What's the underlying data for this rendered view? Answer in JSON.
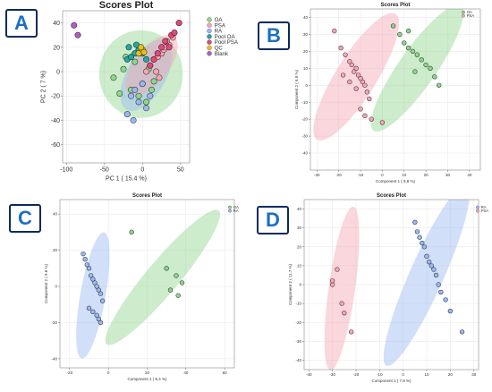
{
  "panels": {
    "A": {
      "label": "A"
    },
    "B": {
      "label": "B"
    },
    "C": {
      "label": "C"
    },
    "D": {
      "label": "D"
    }
  },
  "colors": {
    "OA": "#8fd48f",
    "PSA": "#f4a6b4",
    "RA": "#9bb8f0",
    "Pool OA": "#2aa6a0",
    "Pool PSA": "#e04a7a",
    "QC": "#e8c21a",
    "Blank": "#b060c0"
  },
  "chart_data": [
    {
      "id": "A",
      "type": "scatter",
      "title": "Scores Plot",
      "xlabel": "PC 1 ( 15.4 %)",
      "ylabel": "PC 2 ( 7 %)",
      "xlim": [
        -105,
        62
      ],
      "ylim": [
        -75,
        50
      ],
      "xticks": [
        -100,
        -50,
        0,
        50
      ],
      "yticks": [
        40,
        20,
        0,
        -20,
        -40,
        -60
      ],
      "legend": [
        "OA",
        "PSA",
        "RA",
        "Pool OA",
        "Pool PSA",
        "QC",
        "Blank"
      ],
      "legend_position": "right",
      "ellipses": [
        {
          "group": "OA",
          "cx": -2,
          "cy": -2,
          "rx": 55,
          "ry": 36,
          "angle": 0
        },
        {
          "group": "RA",
          "cx": 5,
          "cy": -3,
          "rx": 52,
          "ry": 16,
          "angle": 60
        },
        {
          "group": "PSA",
          "cx": 12,
          "cy": 5,
          "rx": 48,
          "ry": 14,
          "angle": 52
        }
      ],
      "series": [
        {
          "name": "OA",
          "x": [
            -38,
            -22,
            -15,
            -10,
            -5,
            0,
            5,
            8,
            12,
            15,
            -25,
            -30
          ],
          "y": [
            -5,
            12,
            -15,
            8,
            -20,
            -10,
            -25,
            2,
            -15,
            -8,
            2,
            -18
          ]
        },
        {
          "name": "PSA",
          "x": [
            5,
            10,
            15,
            20,
            25,
            28,
            30,
            35,
            18,
            22,
            32,
            40
          ],
          "y": [
            0,
            5,
            10,
            12,
            15,
            18,
            20,
            22,
            0,
            -5,
            25,
            28
          ]
        },
        {
          "name": "RA",
          "x": [
            -15,
            -10,
            -5,
            0,
            5,
            10,
            -20,
            -12
          ],
          "y": [
            -20,
            -15,
            -25,
            -10,
            -30,
            -20,
            -35,
            -40
          ]
        },
        {
          "name": "Pool OA",
          "x": [
            -20,
            -15,
            -10,
            -5,
            0,
            5,
            -18,
            -8
          ],
          "y": [
            10,
            12,
            15,
            18,
            15,
            10,
            20,
            22
          ]
        },
        {
          "name": "Pool PSA",
          "x": [
            10,
            15,
            20,
            25,
            30,
            35,
            38,
            42,
            48
          ],
          "y": [
            5,
            10,
            15,
            20,
            25,
            20,
            30,
            32,
            40
          ]
        },
        {
          "name": "QC",
          "x": [
            -5,
            0,
            -2,
            2
          ],
          "y": [
            15,
            18,
            20,
            16
          ]
        },
        {
          "name": "Blank",
          "x": [
            -90,
            -85
          ],
          "y": [
            38,
            30
          ]
        }
      ]
    },
    {
      "id": "B",
      "type": "scatter",
      "title": "Scores Plot",
      "xlabel": "Component 1 ( 6.8 %)",
      "ylabel": "Component 2 ( 6.9 %)",
      "xlim": [
        -33,
        45
      ],
      "ylim": [
        -50,
        45
      ],
      "xticks": [
        -30,
        -20,
        -10,
        0,
        10,
        20,
        30,
        40
      ],
      "yticks": [
        40,
        30,
        20,
        10,
        0,
        -10,
        -20,
        -30,
        -40
      ],
      "legend": [
        "OA",
        "PSA"
      ],
      "legend_position": "top-right",
      "ellipses": [
        {
          "group": "PSA",
          "cx": -12,
          "cy": 5,
          "rx": 34,
          "ry": 12,
          "angle": 58
        },
        {
          "group": "OA",
          "cx": 16,
          "cy": 10,
          "rx": 35,
          "ry": 11,
          "angle": 55
        }
      ],
      "series": [
        {
          "name": "PSA",
          "x": [
            -22,
            -19,
            -17,
            -15,
            -14,
            -13,
            -12,
            -11,
            -10,
            -9,
            -8,
            -7,
            -6,
            -12,
            -15,
            -18,
            -10,
            -8,
            -5,
            0
          ],
          "y": [
            32,
            22,
            18,
            14,
            12,
            8,
            10,
            6,
            4,
            2,
            0,
            -4,
            -8,
            -2,
            2,
            6,
            -14,
            -18,
            -20,
            -22
          ]
        },
        {
          "name": "OA",
          "x": [
            5,
            8,
            10,
            12,
            14,
            16,
            18,
            20,
            22,
            24,
            26,
            15,
            12
          ],
          "y": [
            35,
            30,
            25,
            22,
            20,
            18,
            15,
            12,
            10,
            5,
            0,
            8,
            32
          ]
        }
      ]
    },
    {
      "id": "C",
      "type": "scatter",
      "title": "Scores Plot",
      "xlabel": "Component 1 ( 5.4 %)",
      "ylabel": "Component 2 ( 9.6 %)",
      "xlim": [
        -25,
        65
      ],
      "ylim": [
        -45,
        48
      ],
      "xticks": [
        -20,
        0,
        20,
        40,
        60
      ],
      "yticks": [
        40,
        20,
        0,
        -20,
        -40
      ],
      "legend": [
        "OA",
        "RA"
      ],
      "legend_position": "top-right",
      "ellipses": [
        {
          "group": "RA",
          "cx": -8,
          "cy": -5,
          "rx": 33,
          "ry": 7,
          "angle": 80
        },
        {
          "group": "OA",
          "cx": 28,
          "cy": 5,
          "rx": 45,
          "ry": 9,
          "angle": 50
        }
      ],
      "series": [
        {
          "name": "RA",
          "x": [
            -13,
            -12,
            -11,
            -10,
            -9,
            -8,
            -7,
            -6,
            -5,
            -4,
            -3,
            -10,
            -8,
            -6,
            -5,
            -4
          ],
          "y": [
            18,
            15,
            12,
            10,
            6,
            4,
            2,
            0,
            -2,
            -4,
            -8,
            -12,
            -14,
            -16,
            -18,
            -20
          ]
        },
        {
          "name": "OA",
          "x": [
            12,
            30,
            35,
            38,
            32,
            36
          ],
          "y": [
            30,
            10,
            6,
            2,
            -2,
            -5
          ]
        }
      ]
    },
    {
      "id": "D",
      "type": "scatter",
      "title": "Scores Plot",
      "xlabel": "Component 1 ( 7.8 %)",
      "ylabel": "Component 2 ( 11.7 %)",
      "xlim": [
        -42,
        32
      ],
      "ylim": [
        -45,
        45
      ],
      "xticks": [
        -40,
        -30,
        -20,
        -10,
        0,
        10,
        20,
        30
      ],
      "yticks": [
        40,
        30,
        20,
        10,
        0,
        -10,
        -20,
        -30,
        -40
      ],
      "legend": [
        "RA",
        "PSA"
      ],
      "legend_position": "top-right",
      "ellipses": [
        {
          "group": "PSA",
          "cx": -26,
          "cy": -2,
          "rx": 35,
          "ry": 7,
          "angle": 82
        },
        {
          "group": "RA",
          "cx": 10,
          "cy": 5,
          "rx": 42,
          "ry": 9,
          "angle": 66
        }
      ],
      "series": [
        {
          "name": "PSA",
          "x": [
            -30,
            -30,
            -28,
            -26,
            -25,
            -22
          ],
          "y": [
            0,
            2,
            8,
            -10,
            -15,
            -25
          ]
        },
        {
          "name": "RA",
          "x": [
            5,
            6,
            7,
            8,
            9,
            10,
            11,
            12,
            13,
            14,
            15,
            16,
            18,
            20,
            25
          ],
          "y": [
            33,
            28,
            25,
            22,
            20,
            15,
            12,
            10,
            8,
            5,
            0,
            -4,
            -8,
            -14,
            -25
          ]
        }
      ]
    }
  ]
}
